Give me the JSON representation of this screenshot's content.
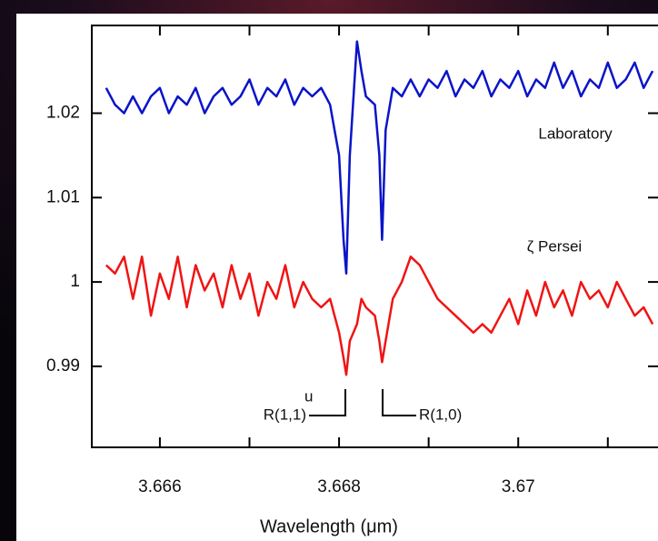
{
  "chart_data": {
    "type": "line",
    "x_label": "Wavelength (μm)",
    "x": [
      3.6654,
      3.6655,
      3.6656,
      3.6657,
      3.6658,
      3.6659,
      3.666,
      3.6661,
      3.6662,
      3.6663,
      3.6664,
      3.6665,
      3.6666,
      3.6667,
      3.6668,
      3.6669,
      3.667,
      3.6671,
      3.6672,
      3.6673,
      3.6674,
      3.6675,
      3.6676,
      3.6677,
      3.6678,
      3.6679,
      3.66795,
      3.668,
      3.66805,
      3.66808,
      3.66812,
      3.6682,
      3.66825,
      3.6683,
      3.6684,
      3.66845,
      3.66848,
      3.66852,
      3.6686,
      3.6687,
      3.6688,
      3.6689,
      3.669,
      3.6691,
      3.6692,
      3.6693,
      3.6694,
      3.6695,
      3.6696,
      3.6697,
      3.6698,
      3.6699,
      3.67,
      3.6701,
      3.6702,
      3.6703,
      3.6704,
      3.6705,
      3.6706,
      3.6707,
      3.6708,
      3.6709,
      3.671,
      3.6711,
      3.6712,
      3.6713,
      3.6714,
      3.6715
    ],
    "series": [
      {
        "name": "Laboratory",
        "color": "#0a14c8",
        "values": [
          1.023,
          1.021,
          1.02,
          1.022,
          1.02,
          1.022,
          1.023,
          1.02,
          1.022,
          1.021,
          1.023,
          1.02,
          1.022,
          1.023,
          1.021,
          1.022,
          1.024,
          1.021,
          1.023,
          1.022,
          1.024,
          1.021,
          1.023,
          1.022,
          1.023,
          1.021,
          1.018,
          1.015,
          1.005,
          1.001,
          1.015,
          1.0285,
          1.025,
          1.022,
          1.021,
          1.015,
          1.005,
          1.018,
          1.023,
          1.022,
          1.024,
          1.022,
          1.024,
          1.023,
          1.025,
          1.022,
          1.024,
          1.023,
          1.025,
          1.022,
          1.024,
          1.023,
          1.025,
          1.022,
          1.024,
          1.023,
          1.026,
          1.023,
          1.025,
          1.022,
          1.024,
          1.023,
          1.026,
          1.023,
          1.024,
          1.026,
          1.023,
          1.025
        ]
      },
      {
        "name": "ζ Persei",
        "color": "#f01414",
        "values": [
          1.002,
          1.001,
          1.003,
          0.998,
          1.003,
          0.996,
          1.001,
          0.998,
          1.003,
          0.997,
          1.002,
          0.999,
          1.001,
          0.997,
          1.002,
          0.998,
          1.001,
          0.996,
          1.0,
          0.998,
          1.002,
          0.997,
          1.0,
          0.998,
          0.997,
          0.998,
          0.996,
          0.994,
          0.991,
          0.989,
          0.993,
          0.995,
          0.998,
          0.997,
          0.996,
          0.993,
          0.9905,
          0.993,
          0.998,
          1.0,
          1.003,
          1.002,
          1.0,
          0.998,
          0.997,
          0.996,
          0.995,
          0.994,
          0.995,
          0.994,
          0.996,
          0.998,
          0.995,
          0.999,
          0.996,
          1.0,
          0.997,
          0.999,
          0.996,
          1.0,
          0.998,
          0.999,
          0.997,
          1.0,
          0.998,
          0.996,
          0.997,
          0.995
        ]
      }
    ],
    "xlim": [
      3.66524,
      3.67156
    ],
    "ylim": [
      0.9804,
      1.0304
    ],
    "xticks": [
      3.666,
      3.668,
      3.67
    ],
    "xminorticks": [
      3.667,
      3.669,
      3.671
    ],
    "yticks": [
      0.99,
      1.0,
      1.01,
      1.02
    ],
    "annotations": [
      "R(1,1)",
      "u",
      "R(1,0)"
    ]
  }
}
